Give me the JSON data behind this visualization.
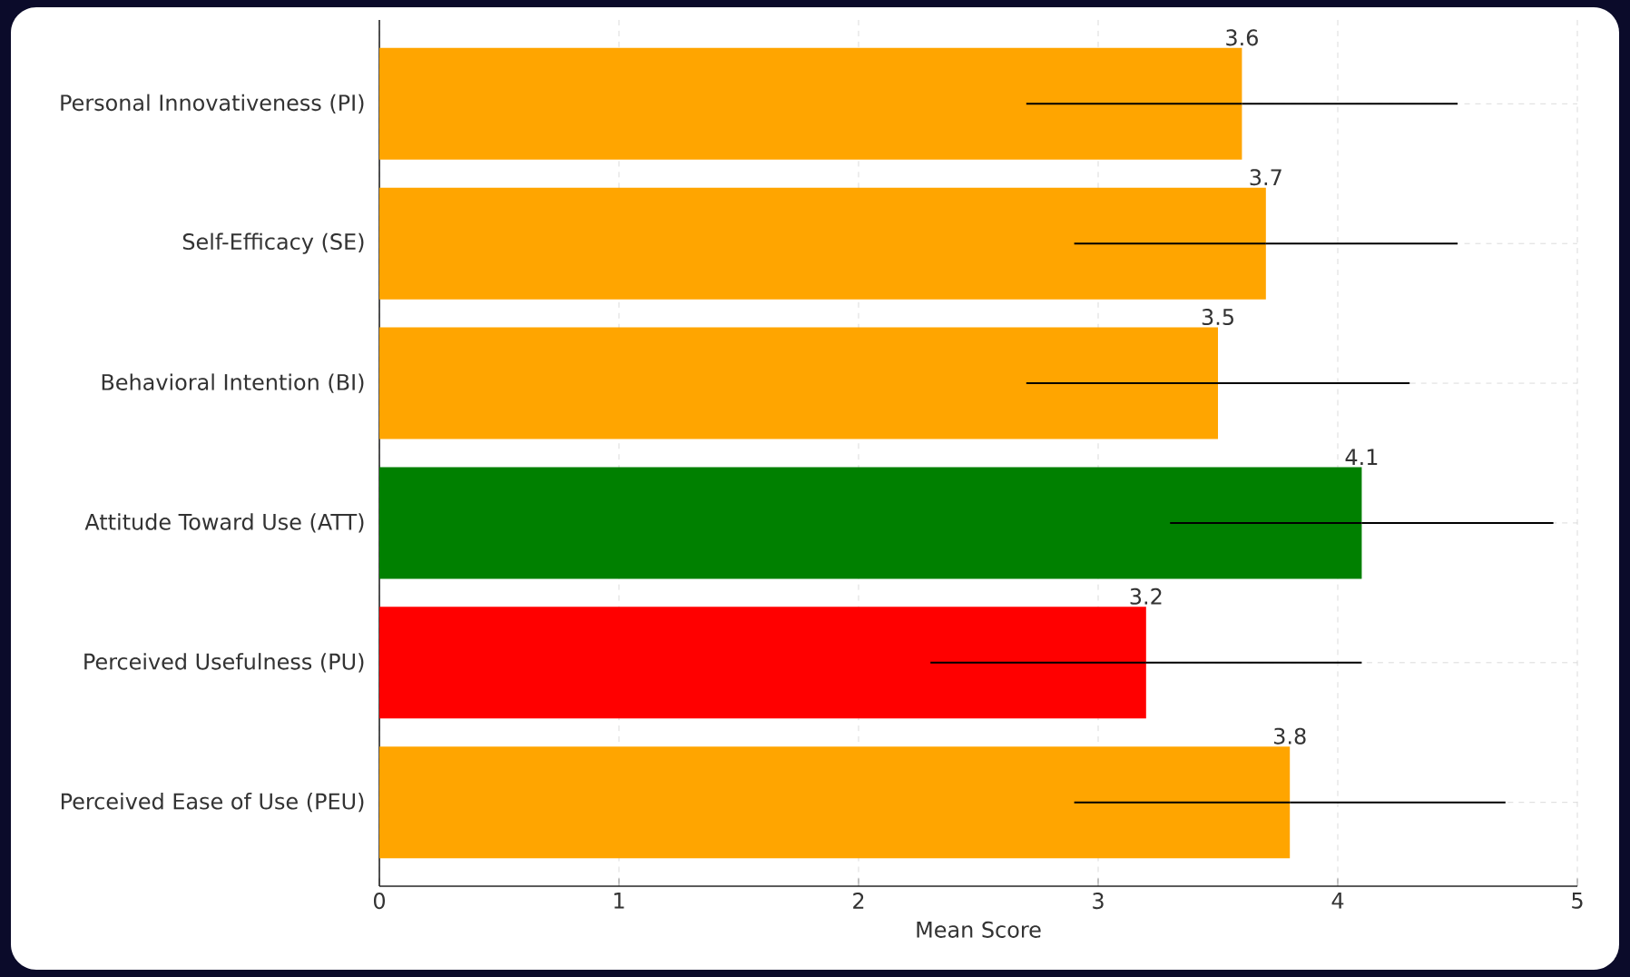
{
  "chart_data": {
    "type": "bar",
    "orientation": "horizontal",
    "xlabel": "Mean Score",
    "categories": [
      "Personal Innovativeness (PI)",
      "Self-Efficacy (SE)",
      "Behavioral Intention (BI)",
      "Attitude Toward Use (ATT)",
      "Perceived Usefulness (PU)",
      "Perceived Ease of Use (PEU)"
    ],
    "values": [
      3.6,
      3.7,
      3.5,
      4.1,
      3.2,
      3.8
    ],
    "value_labels": [
      "3.6",
      "3.7",
      "3.5",
      "4.1",
      "3.2",
      "3.8"
    ],
    "errors": [
      0.9,
      0.8,
      0.8,
      0.8,
      0.9,
      0.9
    ],
    "colors": [
      "#ffa500",
      "#ffa500",
      "#ffa500",
      "#008000",
      "#ff0000",
      "#ffa500"
    ],
    "xlim": [
      0,
      5
    ],
    "xticks": [
      0,
      1,
      2,
      3,
      4,
      5
    ],
    "grid": true
  }
}
